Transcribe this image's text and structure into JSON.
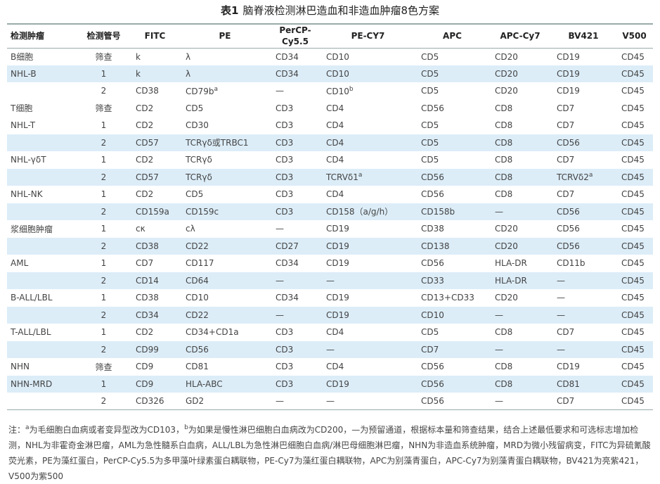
{
  "title": {
    "label": "表1",
    "text": "脑脊液检测淋巴造血和非造血肿瘤8色方案"
  },
  "table": {
    "header": [
      "检测肿瘤",
      "检测管号",
      "FITC",
      "PE",
      "PerCP-Cy5.5",
      "PE-CY7",
      "APC",
      "APC-Cy7",
      "BV421",
      "V500"
    ],
    "rows": [
      [
        "B细胞",
        "筛查",
        "k",
        "λ",
        "CD34",
        "CD10",
        "CD5",
        "CD20",
        "CD19",
        "CD45"
      ],
      [
        "NHL-B",
        "1",
        "k",
        "λ",
        "CD34",
        "CD10",
        "CD5",
        "CD20",
        "CD19",
        "CD45"
      ],
      [
        null,
        "2",
        "CD38",
        {
          "text": "CD79b",
          "sup": "a"
        },
        "—",
        {
          "text": "CD10",
          "sup": "b"
        },
        "CD5",
        "CD20",
        "CD19",
        "CD45"
      ],
      [
        "T细胞",
        "筛查",
        "CD2",
        "CD5",
        "CD3",
        "CD4",
        "CD56",
        "CD8",
        "CD7",
        "CD45"
      ],
      [
        "NHL-T",
        "1",
        "CD2",
        "CD30",
        "CD3",
        "CD4",
        "CD5",
        "CD8",
        "CD7",
        "CD45"
      ],
      [
        null,
        "2",
        "CD57",
        "TCRγδ或TRBC1",
        "CD3",
        "CD4",
        "CD5",
        "CD8",
        "CD56",
        "CD45"
      ],
      [
        "NHL-γδT",
        "1",
        "CD2",
        "TCRγδ",
        "CD3",
        "CD4",
        "CD5",
        "CD8",
        "CD7",
        "CD45"
      ],
      [
        null,
        "2",
        "CD57",
        "TCRγδ",
        "CD3",
        {
          "text": "TCRVδ1",
          "sup": "a"
        },
        "CD56",
        "CD8",
        {
          "text": "TCRVδ2",
          "sup": "a"
        },
        "CD45"
      ],
      [
        "NHL-NK",
        "1",
        "CD2",
        "CD5",
        "CD3",
        "CD4",
        "CD56",
        "CD8",
        "CD7",
        "CD45"
      ],
      [
        null,
        "2",
        "CD159a",
        "CD159c",
        "CD3",
        "CD158（a/g/h）",
        "CD158b",
        "—",
        "CD56",
        "CD45"
      ],
      [
        "浆细胞肿瘤",
        "1",
        "cκ",
        "cλ",
        "—",
        "CD19",
        "CD38",
        "CD20",
        "CD56",
        "CD45"
      ],
      [
        null,
        "2",
        "CD38",
        "CD22",
        "CD27",
        "CD19",
        "CD138",
        "CD20",
        "CD56",
        "CD45"
      ],
      [
        "AML",
        "1",
        "CD7",
        "CD117",
        "CD34",
        "CD19",
        "CD56",
        "HLA-DR",
        "CD11b",
        "CD45"
      ],
      [
        null,
        "2",
        "CD14",
        "CD64",
        "—",
        "—",
        "CD33",
        "HLA-DR",
        "—",
        "CD45"
      ],
      [
        "B-ALL/LBL",
        "1",
        "CD38",
        "CD10",
        "CD34",
        "CD19",
        "CD13+CD33",
        "CD20",
        "—",
        "CD45"
      ],
      [
        null,
        "2",
        "CD34",
        "CD22",
        "—",
        "CD19",
        "CD10",
        "—",
        "—",
        "CD45"
      ],
      [
        "T-ALL/LBL",
        "1",
        "CD2",
        "CD34+CD1a",
        "CD3",
        "CD4",
        "CD5",
        "CD8",
        "CD7",
        "CD45"
      ],
      [
        null,
        "2",
        "CD99",
        "CD56",
        "CD3",
        "—",
        "CD7",
        "—",
        "—",
        "CD45"
      ],
      [
        "NHN",
        "筛查",
        "CD9",
        "CD81",
        "CD3",
        "CD4",
        "CD56",
        "CD8",
        "CD19",
        "CD45"
      ],
      [
        "NHN-MRD",
        "1",
        "CD9",
        "HLA-ABC",
        "CD3",
        "CD19",
        "CD56",
        "CD8",
        "CD81",
        "CD45"
      ],
      [
        null,
        "2",
        "CD326",
        "GD2",
        "—",
        "—",
        "CD56",
        "—",
        "CD7",
        "CD45"
      ]
    ]
  },
  "note": {
    "lead": "注：",
    "items": [
      {
        "sup": "a",
        "text": "为毛细胞白血病或者变异型改为CD103，"
      },
      {
        "sup": "b",
        "text": "为如果是慢性淋巴细胞白血病改为CD200，—为预留通道，根据标本量和筛查结果，结合上述最低要求和可选标志增加检测，NHL为非霍奇金淋巴瘤，AML为急性髓系白血病，ALL/LBL为急性淋巴细胞白血病/淋巴母细胞淋巴瘤，NHN为非造血系统肿瘤，MRD为微小残留病变，FITC为异硫氰酸荧光素，PE为藻红蛋白，PerCP-Cy5.5为多甲藻叶绿素蛋白耦联物，PE-Cy7为藻红蛋白耦联物，APC为别藻青蛋白，APC-Cy7为别藻青蛋白耦联物，BV421为亮紫421，V500为紫500"
      }
    ]
  }
}
